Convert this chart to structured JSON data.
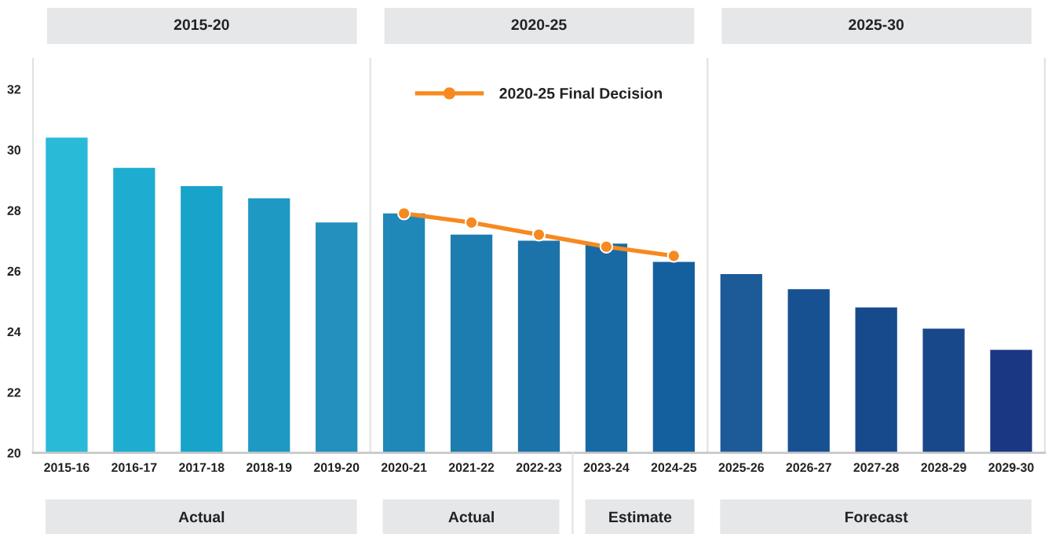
{
  "chart_data": [
    {
      "type": "bar",
      "title": "2015-20",
      "categories": [
        "2015-16",
        "2016-17",
        "2017-18",
        "2018-19",
        "2019-20"
      ],
      "series": [
        {
          "colors": [
            "#29bad8",
            "#1eadd0",
            "#18a3ca",
            "#1e99c4",
            "#2390bd"
          ],
          "values": [
            30.4,
            29.4,
            28.8,
            28.4,
            27.6
          ]
        }
      ],
      "ylim": [
        20,
        33
      ],
      "yticks": [
        20,
        22,
        24,
        26,
        28,
        30,
        32
      ],
      "annotations": [
        "Actual"
      ]
    },
    {
      "type": "bar",
      "title": "2020-25",
      "categories": [
        "2020-21",
        "2021-22",
        "2022-23",
        "2023-24",
        "2024-25"
      ],
      "series": [
        {
          "colors": [
            "#1f88b8",
            "#1e7db0",
            "#1c73aa",
            "#176aa4",
            "#14609e"
          ],
          "values": [
            27.9,
            27.2,
            27.0,
            26.9,
            26.3
          ]
        },
        {
          "type": "line",
          "name": "2020-25 Final Decision",
          "color": "#f7891f",
          "values": [
            27.9,
            27.6,
            27.2,
            26.8,
            26.5
          ]
        }
      ],
      "ylim": [
        20,
        33
      ],
      "yticks": [
        20,
        22,
        24,
        26,
        28,
        30,
        32
      ],
      "tick_labels": "x",
      "legend": "top",
      "marker": "circle",
      "annotations": [
        "Actual",
        "Estimate"
      ]
    },
    {
      "type": "bar",
      "title": "2025-30",
      "categories": [
        "2025-26",
        "2026-27",
        "2027-28",
        "2028-29",
        "2029-30"
      ],
      "series": [
        {
          "colors": [
            "#1c5a98",
            "#185192",
            "#17498d",
            "#184888",
            "#1a3783"
          ],
          "values": [
            25.9,
            25.4,
            24.8,
            24.1,
            23.4
          ]
        }
      ],
      "ylim": [
        20,
        33
      ],
      "yticks": [
        20,
        22,
        24,
        26,
        28,
        30,
        32
      ],
      "tick_labels": "x",
      "annotations": [
        "Forecast"
      ]
    }
  ]
}
